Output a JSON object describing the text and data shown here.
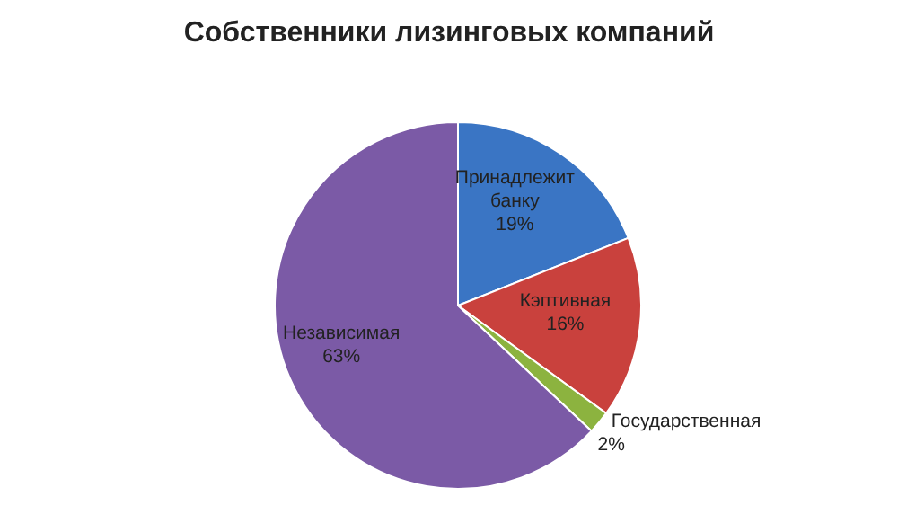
{
  "chart_data": {
    "type": "pie",
    "title": "Собственники лизинговых компаний",
    "categories": [
      "Принадлежит банку",
      "Кэптивная",
      "Государственная",
      "Независимая"
    ],
    "values": [
      19,
      16,
      2,
      63
    ],
    "colors": [
      "#3a75c4",
      "#c9413d",
      "#8cb33f",
      "#7b5aa6"
    ],
    "value_labels": [
      "19%",
      "16%",
      "2%",
      "63%"
    ]
  }
}
